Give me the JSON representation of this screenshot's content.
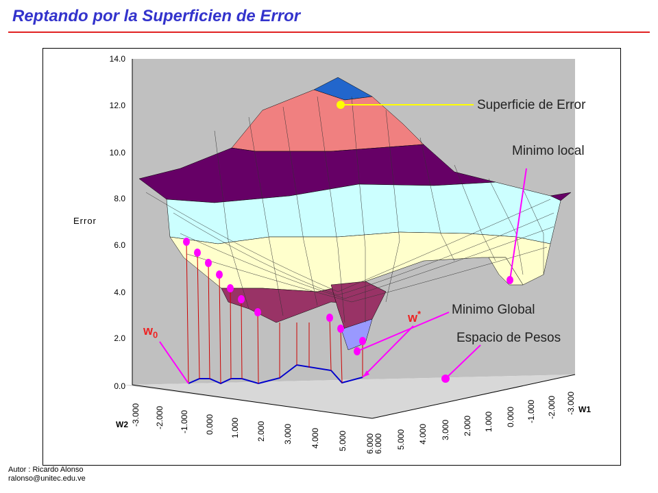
{
  "header": {
    "title": "Reptando por la Superficien de Error"
  },
  "plot": {
    "y_axis_label": "Error",
    "y_ticks": [
      "14.0",
      "12.0",
      "10.0",
      "8.0",
      "6.0",
      "4.0",
      "2.0",
      "0.0"
    ],
    "w2_axis_label": "W2",
    "w2_ticks": [
      "-3.000",
      "-2.000",
      "-1.000",
      "0.000",
      "1.000",
      "2.000",
      "3.000",
      "4.000",
      "5.000",
      "6.000"
    ],
    "w1_axis_label": "W1",
    "w1_ticks": [
      "6.000",
      "5.000",
      "4.000",
      "3.000",
      "2.000",
      "1.000",
      "0.000",
      "-1.000",
      "-2.000",
      "-3.000"
    ],
    "colors": {
      "top_blue": "#2266cc",
      "salmon": "#f08080",
      "purple": "#660066",
      "light_cyan": "#ccffff",
      "cream": "#ffffcc",
      "dark_rose": "#993366",
      "lavender": "#9999ff",
      "wall": "#c0c0c0",
      "marker": "#ff00ff",
      "path_line": "#0000cc",
      "drop_line": "#cc0000"
    }
  },
  "annotations": {
    "surface": "Superficie de Error",
    "local_min": "Minimo local",
    "global_min": "Minimo Global",
    "weight_space": "Espacio de Pesos",
    "w0_base": "w",
    "w0_sub": "0",
    "wstar_base": "w",
    "wstar_sup": "*"
  },
  "footer": {
    "author": "Autor : Ricardo Alonso",
    "email": "ralonso@unitec.edu.ve"
  }
}
